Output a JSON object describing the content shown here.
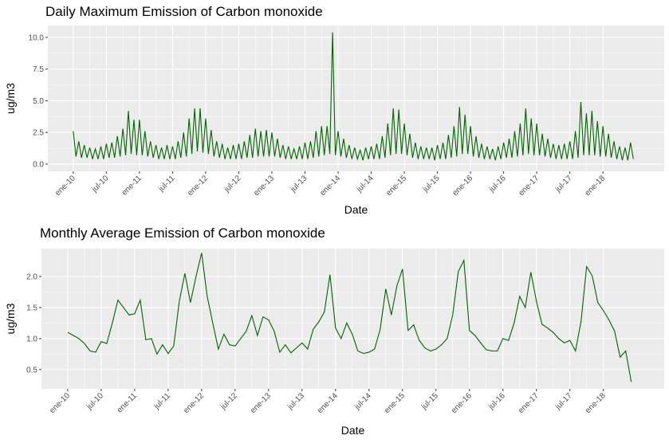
{
  "chart_data": [
    {
      "type": "line",
      "title": "Daily Maximum Emission of Carbon monoxide",
      "x_label": "Date",
      "y_label": "ug/m3",
      "color": "#006400",
      "grid": true,
      "x": [
        0,
        0.5,
        1,
        1.5,
        2,
        2.5,
        3,
        3.5,
        4,
        4.5,
        5,
        5.5,
        6,
        6.5,
        7,
        7.5,
        8,
        8.5,
        9,
        9.5,
        10,
        10.5,
        11,
        11.5,
        12,
        12.5,
        13,
        13.5,
        14,
        14.5,
        15,
        15.5,
        16,
        16.5,
        17,
        17.5,
        18,
        18.5,
        19,
        19.5,
        20,
        20.5,
        21,
        21.5,
        22,
        22.5,
        23,
        23.5,
        24,
        24.5,
        25,
        25.5,
        26,
        26.5,
        27,
        27.5,
        28,
        28.5,
        29,
        29.5,
        30,
        30.5,
        31,
        31.5,
        32,
        32.5,
        33,
        33.5,
        34,
        34.5,
        35,
        35.5,
        36,
        36.5,
        37,
        37.5,
        38,
        38.5,
        39,
        39.5,
        40,
        40.5,
        41,
        41.5,
        42,
        42.5,
        43,
        43.5,
        44,
        44.5,
        45,
        45.5,
        46,
        46.5,
        47,
        47.5,
        48,
        48.5,
        49,
        49.5,
        50,
        50.5,
        51,
        51.5,
        52,
        52.5,
        53,
        53.5,
        54,
        54.5,
        55,
        55.5,
        56,
        56.5,
        57,
        57.5,
        58,
        58.5,
        59,
        59.5,
        60,
        60.5,
        61,
        61.5,
        62,
        62.5,
        63,
        63.5,
        64,
        64.5,
        65,
        65.5,
        66,
        66.5,
        67,
        67.5,
        68,
        68.5,
        69,
        69.5,
        70,
        70.5,
        71,
        71.5,
        72,
        72.5,
        73,
        73.5,
        74,
        74.5,
        75,
        75.5,
        76,
        76.5,
        77,
        77.5,
        78,
        78.5,
        79,
        79.5,
        80,
        80.5,
        81,
        81.5,
        82,
        82.5,
        83,
        83.5,
        84,
        84.5,
        85,
        85.5,
        86,
        86.5,
        87,
        87.5,
        88,
        88.5,
        89,
        89.5,
        90,
        90.5,
        91,
        91.5,
        92,
        92.5,
        93,
        93.5,
        94,
        94.5,
        95,
        95.5,
        96,
        96.5,
        97,
        97.5,
        98,
        98.5,
        99,
        99.5,
        100,
        100.5,
        101,
        101.5
      ],
      "values": [
        2.6,
        0.6,
        1.8,
        0.5,
        1.5,
        0.5,
        1.3,
        0.4,
        1.2,
        0.4,
        1.4,
        0.4,
        1.6,
        0.5,
        1.7,
        0.5,
        2.2,
        0.6,
        2.8,
        0.7,
        4.2,
        0.8,
        3.5,
        0.7,
        3.5,
        0.7,
        2.6,
        0.6,
        1.8,
        0.5,
        1.5,
        0.4,
        1.3,
        0.4,
        1.5,
        0.4,
        1.4,
        0.4,
        1.8,
        0.5,
        2.5,
        0.6,
        3.6,
        0.8,
        4.4,
        1.0,
        4.4,
        0.9,
        3.6,
        0.8,
        2.7,
        0.6,
        1.8,
        0.5,
        1.6,
        0.4,
        1.3,
        0.4,
        1.5,
        0.4,
        1.6,
        0.4,
        1.8,
        0.5,
        2.3,
        0.5,
        2.8,
        0.6,
        2.6,
        0.6,
        2.7,
        0.6,
        2.5,
        0.6,
        2.0,
        0.5,
        1.5,
        0.4,
        1.4,
        0.4,
        1.2,
        0.4,
        1.4,
        0.4,
        1.7,
        0.4,
        1.8,
        0.5,
        2.6,
        0.6,
        3.0,
        0.7,
        3.0,
        0.8,
        10.4,
        0.7,
        2.6,
        0.6,
        2.0,
        0.5,
        1.5,
        0.4,
        1.3,
        0.4,
        1.1,
        0.3,
        1.3,
        0.4,
        1.4,
        0.4,
        1.6,
        0.4,
        2.2,
        0.5,
        3.2,
        0.7,
        4.4,
        0.8,
        4.3,
        0.8,
        3.2,
        0.7,
        2.4,
        0.5,
        1.7,
        0.4,
        1.4,
        0.4,
        1.3,
        0.4,
        1.3,
        0.3,
        1.5,
        0.4,
        1.7,
        0.4,
        2.3,
        0.5,
        3.0,
        0.6,
        4.5,
        0.8,
        3.9,
        0.8,
        3.0,
        0.6,
        2.2,
        0.5,
        1.6,
        0.4,
        1.4,
        0.4,
        1.2,
        0.3,
        1.4,
        0.4,
        1.7,
        0.5,
        2.0,
        0.5,
        2.6,
        0.6,
        3.2,
        0.7,
        4.4,
        0.8,
        3.6,
        0.7,
        3.2,
        0.7,
        2.4,
        0.6,
        2.0,
        0.5,
        1.6,
        0.4,
        1.5,
        0.4,
        1.6,
        0.4,
        1.8,
        0.4,
        2.6,
        0.5,
        4.9,
        0.7,
        4.0,
        0.7,
        4.2,
        0.7,
        3.4,
        0.6,
        3.0,
        0.6,
        2.4,
        0.5,
        1.8,
        0.4,
        1.4,
        0.3,
        1.3,
        0.3,
        1.7,
        0.4
      ],
      "xlim": [
        -4.6,
        107.1
      ],
      "xticks": [
        {
          "value": 0,
          "label": "ene-10"
        },
        {
          "value": 6,
          "label": "jul-10"
        },
        {
          "value": 12,
          "label": "ene-11"
        },
        {
          "value": 18,
          "label": "jul-11"
        },
        {
          "value": 24,
          "label": "ene-12"
        },
        {
          "value": 30,
          "label": "jul-12"
        },
        {
          "value": 36,
          "label": "ene-13"
        },
        {
          "value": 42,
          "label": "jul-13"
        },
        {
          "value": 48,
          "label": "ene-14"
        },
        {
          "value": 54,
          "label": "jul-14"
        },
        {
          "value": 60,
          "label": "ene-15"
        },
        {
          "value": 66,
          "label": "jul-15"
        },
        {
          "value": 72,
          "label": "ene-16"
        },
        {
          "value": 78,
          "label": "jul-16"
        },
        {
          "value": 84,
          "label": "ene-17"
        },
        {
          "value": 90,
          "label": "jul-17"
        },
        {
          "value": 96,
          "label": "ene-18"
        }
      ],
      "ylim": [
        -0.57,
        10.94
      ],
      "yticks": [
        {
          "value": 0,
          "label": "0.0"
        },
        2.5,
        {
          "value": 5,
          "label": "5.0"
        },
        7.5,
        {
          "value": 10,
          "label": "10.0"
        }
      ]
    },
    {
      "type": "line",
      "title": "Monthly Average Emission of Carbon monoxide",
      "x_label": "Date",
      "y_label": "ug/m3",
      "color": "#006400",
      "grid": true,
      "x": [
        0,
        1,
        2,
        3,
        4,
        5,
        6,
        7,
        8,
        9,
        10,
        11,
        12,
        13,
        14,
        15,
        16,
        17,
        18,
        19,
        20,
        21,
        22,
        23,
        24,
        25,
        26,
        27,
        28,
        29,
        30,
        31,
        32,
        33,
        34,
        35,
        36,
        37,
        38,
        39,
        40,
        41,
        42,
        43,
        44,
        45,
        46,
        47,
        48,
        49,
        50,
        51,
        52,
        53,
        54,
        55,
        56,
        57,
        58,
        59,
        60,
        61,
        62,
        63,
        64,
        65,
        66,
        67,
        68,
        69,
        70,
        71,
        72,
        73,
        74,
        75,
        76,
        77,
        78,
        79,
        80,
        81,
        82,
        83,
        84,
        85,
        86,
        87,
        88,
        89,
        90,
        91,
        92,
        93,
        94,
        95,
        96,
        97,
        98,
        99,
        100,
        101
      ],
      "values": [
        1.1,
        1.05,
        1.0,
        0.92,
        0.8,
        0.78,
        0.95,
        0.92,
        1.25,
        1.62,
        1.5,
        1.38,
        1.4,
        1.62,
        0.98,
        1.0,
        0.75,
        0.9,
        0.76,
        0.88,
        1.6,
        2.05,
        1.58,
        2.0,
        2.38,
        1.68,
        1.25,
        0.83,
        1.07,
        0.9,
        0.88,
        1.0,
        1.12,
        1.37,
        1.05,
        1.35,
        1.3,
        1.12,
        0.78,
        0.9,
        0.77,
        0.85,
        0.93,
        0.83,
        1.15,
        1.27,
        1.43,
        2.03,
        1.17,
        1.0,
        1.25,
        1.07,
        0.8,
        0.76,
        0.78,
        0.83,
        1.15,
        1.8,
        1.38,
        1.85,
        2.12,
        1.13,
        1.22,
        0.97,
        0.85,
        0.8,
        0.83,
        0.9,
        1.0,
        1.38,
        2.08,
        2.26,
        1.13,
        1.05,
        0.93,
        0.82,
        0.8,
        0.8,
        1.0,
        0.97,
        1.25,
        1.68,
        1.5,
        2.07,
        1.6,
        1.23,
        1.17,
        1.1,
        1.0,
        0.93,
        0.97,
        0.8,
        1.28,
        2.16,
        2.01,
        1.58,
        1.45,
        1.3,
        1.12,
        0.7,
        0.8,
        0.3
      ],
      "xlim": [
        -4.7,
        106.9
      ],
      "xticks": [
        {
          "value": 0,
          "label": "ene-10"
        },
        {
          "value": 6,
          "label": "jul-10"
        },
        {
          "value": 12,
          "label": "ene-11"
        },
        {
          "value": 18,
          "label": "jul-11"
        },
        {
          "value": 24,
          "label": "ene-12"
        },
        {
          "value": 30,
          "label": "jul-12"
        },
        {
          "value": 36,
          "label": "ene-13"
        },
        {
          "value": 42,
          "label": "jul-13"
        },
        {
          "value": 48,
          "label": "ene-14"
        },
        {
          "value": 54,
          "label": "jul-14"
        },
        {
          "value": 60,
          "label": "ene-15"
        },
        {
          "value": 66,
          "label": "jul-15"
        },
        {
          "value": 72,
          "label": "ene-16"
        },
        {
          "value": 78,
          "label": "jul-16"
        },
        {
          "value": 84,
          "label": "ene-17"
        },
        {
          "value": 90,
          "label": "jul-17"
        },
        {
          "value": 96,
          "label": "ene-18"
        }
      ],
      "ylim": [
        0.19,
        2.45
      ],
      "yticks": [
        0.5,
        {
          "value": 1,
          "label": "1.0"
        },
        1.5,
        {
          "value": 2,
          "label": "2.0"
        }
      ]
    }
  ]
}
